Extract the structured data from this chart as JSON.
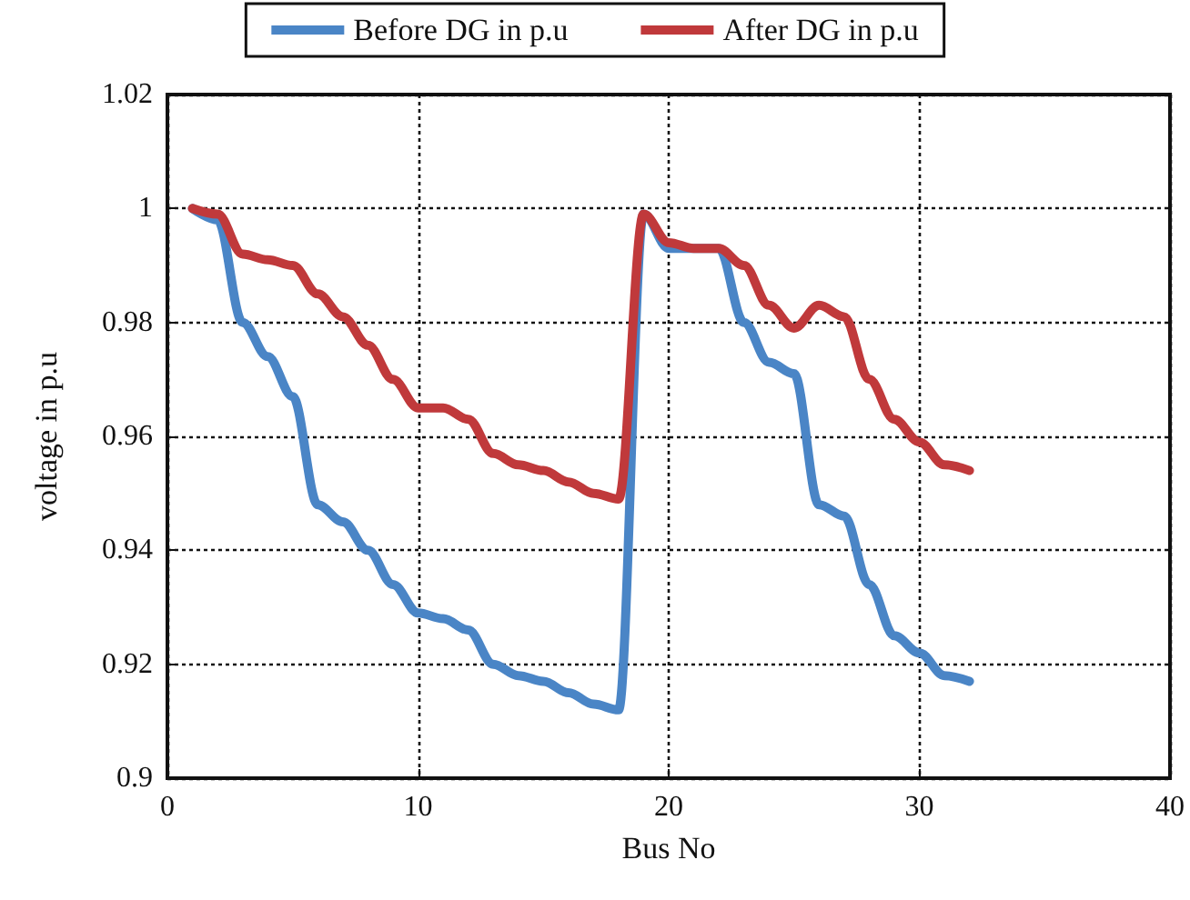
{
  "chart_data": {
    "type": "line",
    "xlabel": "Bus No",
    "ylabel": "voltage in p.u",
    "x": [
      1,
      2,
      3,
      4,
      5,
      6,
      7,
      8,
      9,
      10,
      11,
      12,
      13,
      14,
      15,
      16,
      17,
      18,
      19,
      20,
      21,
      22,
      23,
      24,
      25,
      26,
      27,
      28,
      29,
      30,
      31,
      32
    ],
    "series": [
      {
        "name": "Before DG in p.u",
        "color": "#4a85c6",
        "values": [
          1.0,
          0.998,
          0.98,
          0.974,
          0.967,
          0.948,
          0.945,
          0.94,
          0.934,
          0.929,
          0.928,
          0.926,
          0.92,
          0.918,
          0.917,
          0.915,
          0.913,
          0.912,
          0.999,
          0.993,
          0.993,
          0.993,
          0.98,
          0.973,
          0.971,
          0.948,
          0.946,
          0.934,
          0.925,
          0.922,
          0.918,
          0.917
        ]
      },
      {
        "name": "After DG in p.u",
        "color": "#c0393b",
        "values": [
          1.0,
          0.999,
          0.992,
          0.991,
          0.99,
          0.985,
          0.981,
          0.976,
          0.97,
          0.965,
          0.965,
          0.963,
          0.957,
          0.955,
          0.954,
          0.952,
          0.95,
          0.949,
          0.999,
          0.994,
          0.993,
          0.993,
          0.99,
          0.983,
          0.979,
          0.983,
          0.981,
          0.97,
          0.963,
          0.959,
          0.955,
          0.954
        ]
      }
    ],
    "xlim": [
      0,
      40
    ],
    "xticks": [
      0,
      10,
      20,
      30,
      40
    ],
    "ylim": [
      0.9,
      1.02
    ],
    "yticks": [
      0.9,
      0.92,
      0.94,
      0.96,
      0.98,
      1,
      1.02
    ],
    "grid": true,
    "legend": "top",
    "marker": "none",
    "line_style": "solid"
  }
}
